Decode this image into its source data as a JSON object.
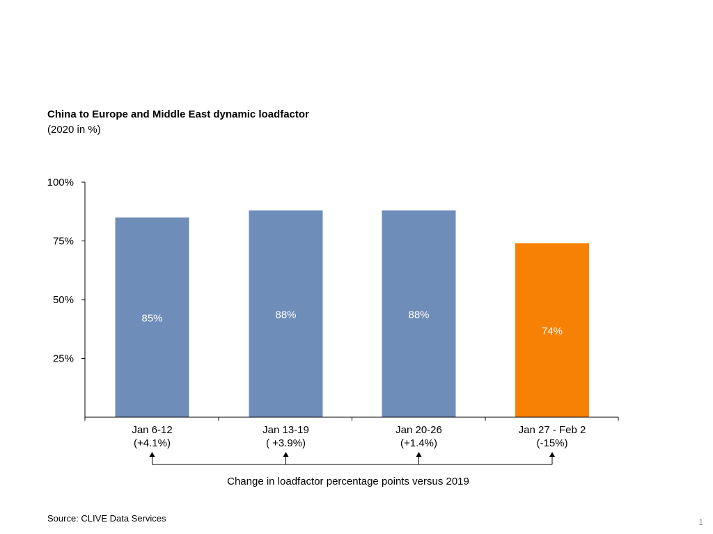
{
  "chart": {
    "title": "China to Europe and Middle East dynamic loadfactor",
    "subtitle": "(2020 in %)",
    "source": "Source: CLIVE Data Services",
    "page_number": "1",
    "change_caption": "Change in loadfactor percentage points versus 2019"
  },
  "chart_data": {
    "type": "bar",
    "title": "China to Europe and Middle East dynamic loadfactor",
    "subtitle": "(2020 in %)",
    "categories": [
      "Jan 6-12",
      "Jan 13-19",
      "Jan 20-26",
      "Jan 27 - Feb 2"
    ],
    "change_labels": [
      "(+4.1%)",
      "( +3.9%)",
      "(+1.4%)",
      "(-15%)"
    ],
    "values": [
      85,
      88,
      88,
      74
    ],
    "value_labels": [
      "85%",
      "88%",
      "88%",
      "74%"
    ],
    "yticks": [
      25,
      50,
      75,
      100
    ],
    "ytick_labels": [
      "25%",
      "50%",
      "75%",
      "100%"
    ],
    "ylim": [
      0,
      100
    ],
    "grid": false,
    "colors": {
      "default_bar": "#6E8DB9",
      "highlight_bar": "#F78104"
    },
    "highlight_index": 3
  }
}
